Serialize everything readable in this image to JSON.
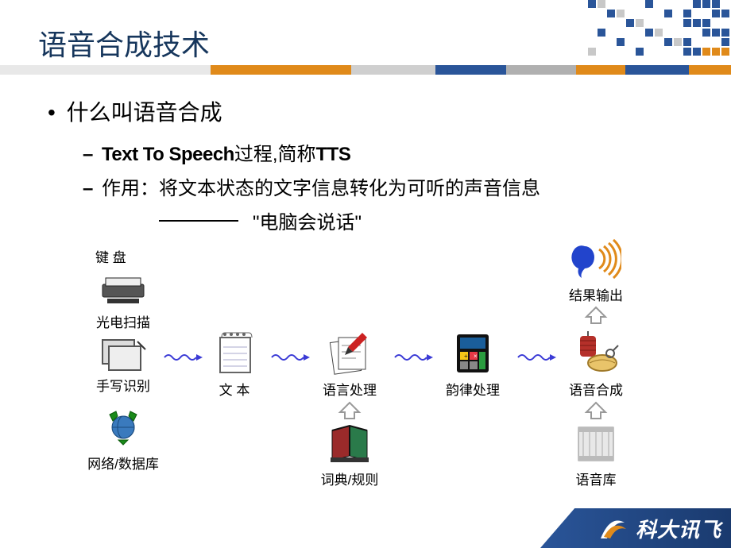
{
  "title": "语音合成技术",
  "bullets": {
    "b1": "什么叫语音合成",
    "b2_bold_a": "Text To Speech",
    "b2_mid": "过程,简称",
    "b2_bold_b": "TTS",
    "b3": "作用：将文本状态的文字信息转化为可听的声音信息",
    "quote": "\"电脑会说话\""
  },
  "diagram": {
    "inputs": {
      "keyboard": "键 盘",
      "scanner": "光电扫描",
      "handwriting": "手写识别",
      "network": "网络/数据库"
    },
    "pipeline": {
      "text": "文 本",
      "lang_proc": "语言处理",
      "prosody": "韵律处理",
      "synth": "语音合成",
      "output": "结果输出",
      "dict": "词典/规则",
      "voicedb": "语音库"
    },
    "colors": {
      "arrow": "#3b3bd6",
      "up_arrow": "#d0d0d0",
      "keyboard": "#333333",
      "scanner": "#555555",
      "tablet": "#888888",
      "recycle": "#1a8a1a",
      "notepad": "#ffffff",
      "notepad_stroke": "#666",
      "pen": "#cc2222",
      "paper": "#ffffff",
      "paper_stroke": "#444",
      "calc_body": "#111",
      "calc_screen": "#1a5e9a",
      "calc_btn1": "#f5c518",
      "calc_btn2": "#e63946",
      "calc_btn3": "#2a9d3f",
      "thread": "#b5302a",
      "tape": "#e9c46a",
      "head": "#2244cc",
      "sound": "#e08a1a",
      "books": "#333",
      "book_red": "#9a2a2a",
      "book_green": "#2a7a4a",
      "server": "#cfcfcf"
    }
  },
  "header_grid": {
    "blue": "#2a5599",
    "orange": "#e08a1a",
    "gray": "#c8c8c8"
  },
  "color_bar": [
    {
      "color": "#e8e8e8",
      "flex": 3
    },
    {
      "color": "#e08a1a",
      "flex": 2
    },
    {
      "color": "#cfcfcf",
      "flex": 1.2
    },
    {
      "color": "#2a5599",
      "flex": 1
    },
    {
      "color": "#b0b0b0",
      "flex": 1
    },
    {
      "color": "#e08a1a",
      "flex": 0.7
    },
    {
      "color": "#2a5599",
      "flex": 0.9
    },
    {
      "color": "#e08a1a",
      "flex": 0.6
    }
  ],
  "footer": {
    "brand": "科大讯飞"
  }
}
